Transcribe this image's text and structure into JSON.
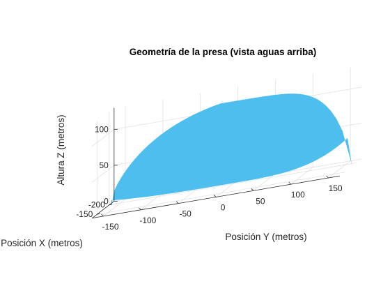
{
  "chart_data": {
    "type": "surface",
    "title": "Geometría de la presa (vista aguas arriba)",
    "xlabel": "Posición X (metros)",
    "ylabel": "Posición Y (metros)",
    "zlabel": "Altura Z (metros)",
    "x_ticks": [
      "-200",
      "-150"
    ],
    "y_ticks": [
      "-150",
      "-100",
      "-50",
      "0",
      "50",
      "100",
      "150"
    ],
    "z_ticks": [
      "0",
      "50",
      "100"
    ],
    "xlim": [
      -220,
      -130
    ],
    "ylim": [
      -165,
      165
    ],
    "zlim": [
      0,
      130
    ],
    "grid": true,
    "surface_color": "#4DBEEE",
    "surface": {
      "description_free": true,
      "y_range": [
        -160,
        160
      ],
      "z_range": [
        0,
        125
      ],
      "x_at_base": -205,
      "x_at_crest": -150,
      "shape": "arch dam upstream face"
    }
  }
}
